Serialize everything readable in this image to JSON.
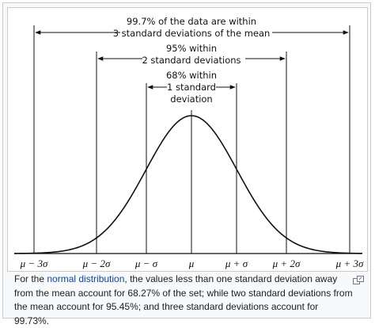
{
  "diagram": {
    "annotations": {
      "three_sigma": [
        "99.7% of the data are within",
        "3 standard deviations of the mean"
      ],
      "two_sigma": [
        "95% within",
        "2 standard deviations"
      ],
      "one_sigma": [
        "68% within",
        "1 standard",
        "deviation"
      ]
    },
    "axis_labels": [
      "μ − 3σ",
      "μ − 2σ",
      "μ − σ",
      "μ",
      "μ + σ",
      "μ + 2σ",
      "μ + 3σ"
    ],
    "colors": {
      "line": "#111111",
      "background": "#ffffff"
    }
  },
  "caption": {
    "before_link": "For the ",
    "link_text": "normal distribution",
    "after_link": ", the values less than one standard deviation away from the mean account for 68.27% of the set; while two standard deviations from the mean account for 95.45%; and three standard deviations account for 99.73%."
  },
  "icons": {
    "magnify": "magnify-clip-icon"
  }
}
